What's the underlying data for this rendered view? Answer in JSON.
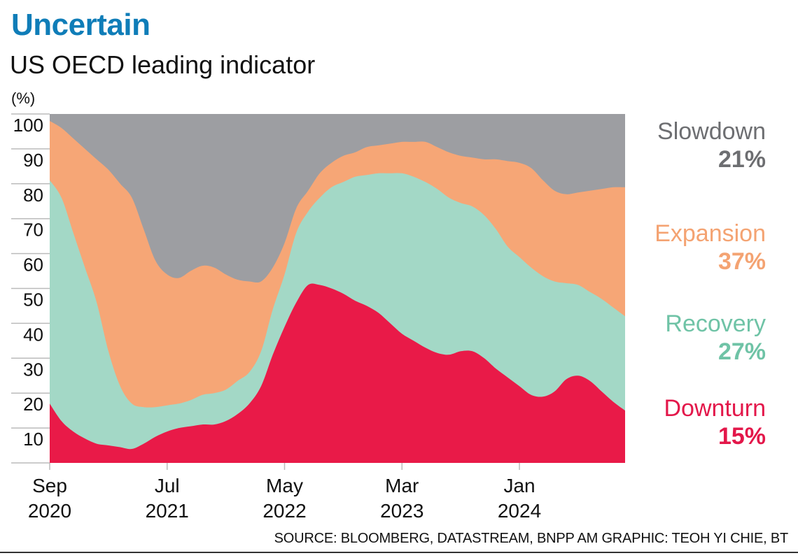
{
  "header": {
    "title": "Uncertain",
    "subtitle": "US OECD leading indicator",
    "unit": "(%)"
  },
  "footer": {
    "source": "SOURCE: BLOOMBERG, DATASTREAM, BNPP AM   GRAPHIC: TEOH YI CHIE, BT"
  },
  "legend": [
    {
      "name": "Slowdown",
      "value": "21%",
      "color": "#6d6e71"
    },
    {
      "name": "Expansion",
      "value": "37%",
      "color": "#f4a372"
    },
    {
      "name": "Recovery",
      "value": "27%",
      "color": "#6fc3a6"
    },
    {
      "name": "Downturn",
      "value": "15%",
      "color": "#e3174a"
    }
  ],
  "chart_data": {
    "type": "area",
    "stacked": true,
    "title": "US OECD leading indicator",
    "ylabel": "(%)",
    "xlabel": "",
    "ylim": [
      0,
      100
    ],
    "yticks": [
      10,
      20,
      30,
      40,
      50,
      60,
      70,
      80,
      90,
      100
    ],
    "x_unit": "months since Sep 2020",
    "xlim": [
      0,
      49
    ],
    "xticks": [
      {
        "month": 0,
        "label": [
          "Sep",
          "2020"
        ]
      },
      {
        "month": 10,
        "label": [
          "Jul",
          "2021"
        ]
      },
      {
        "month": 20,
        "label": [
          "May",
          "2022"
        ]
      },
      {
        "month": 30,
        "label": [
          "Mar",
          "2023"
        ]
      },
      {
        "month": 40,
        "label": [
          "Jan",
          "2024"
        ]
      }
    ],
    "grid": false,
    "legend_position": "right",
    "x": [
      0,
      1,
      2,
      3,
      4,
      5,
      6,
      7,
      8,
      9,
      10,
      11,
      12,
      13,
      14,
      15,
      16,
      17,
      18,
      19,
      20,
      21,
      22,
      23,
      24,
      25,
      26,
      27,
      28,
      29,
      30,
      31,
      32,
      33,
      34,
      35,
      36,
      37,
      38,
      39,
      40,
      41,
      42,
      43,
      44,
      45,
      46,
      47,
      48,
      49
    ],
    "series": [
      {
        "name": "Downturn",
        "color": "#e91a48",
        "values": [
          17,
          12,
          9,
          7,
          5.5,
          5,
          4.5,
          4,
          5.5,
          7.5,
          9,
          10,
          10.5,
          11,
          11,
          12,
          14,
          17,
          22,
          31,
          39,
          46,
          51,
          51,
          50,
          48.5,
          46.5,
          45,
          43,
          40,
          37,
          35,
          33,
          31.5,
          31,
          32,
          32,
          30,
          27,
          24.5,
          22,
          19.5,
          19,
          20.5,
          24,
          25,
          23.5,
          20.5,
          17.5,
          15
        ]
      },
      {
        "name": "Recovery",
        "color": "#a3d8c6",
        "values": [
          64,
          64,
          57,
          49,
          40.5,
          27,
          17.5,
          13,
          10.5,
          8.5,
          7.5,
          7,
          7.5,
          8.5,
          9,
          9,
          9.5,
          9,
          10,
          13,
          15,
          20,
          21,
          25,
          29,
          32,
          35.5,
          37.5,
          40,
          43,
          46,
          47,
          47.5,
          47,
          45,
          42.5,
          41.5,
          41,
          40,
          37.5,
          37,
          36.5,
          34.5,
          31.5,
          27.5,
          26,
          25.5,
          26.5,
          27,
          27
        ]
      },
      {
        "name": "Expansion",
        "color": "#f6a676",
        "values": [
          17,
          20,
          27,
          34,
          41,
          52,
          58,
          59,
          51,
          42,
          37.5,
          36,
          37,
          37,
          36,
          33,
          29,
          26,
          20,
          12,
          9,
          7,
          6,
          7,
          7,
          7.5,
          7,
          8,
          8,
          8.5,
          9,
          10,
          11.5,
          12,
          13,
          13.5,
          14,
          16,
          20,
          24.5,
          27,
          28.5,
          27.5,
          26,
          25.5,
          26.5,
          29,
          31.5,
          34.5,
          37
        ]
      },
      {
        "name": "Slowdown",
        "color": "#9d9ea2",
        "values": [
          2,
          4,
          7,
          10,
          13,
          16,
          20,
          24,
          33,
          42,
          46,
          47,
          45,
          43.5,
          44,
          46,
          47.5,
          48,
          48,
          44,
          37,
          27,
          22,
          17,
          14,
          12,
          11,
          9.5,
          9,
          8.5,
          8,
          8,
          8,
          9.5,
          11,
          12,
          12.5,
          13,
          13,
          13.5,
          14,
          15.5,
          19,
          22,
          23,
          22.5,
          22,
          21.5,
          21,
          21
        ]
      }
    ],
    "annotations": [
      {
        "series": "Slowdown",
        "text": "21%"
      },
      {
        "series": "Expansion",
        "text": "37%"
      },
      {
        "series": "Recovery",
        "text": "27%"
      },
      {
        "series": "Downturn",
        "text": "15%"
      }
    ]
  }
}
